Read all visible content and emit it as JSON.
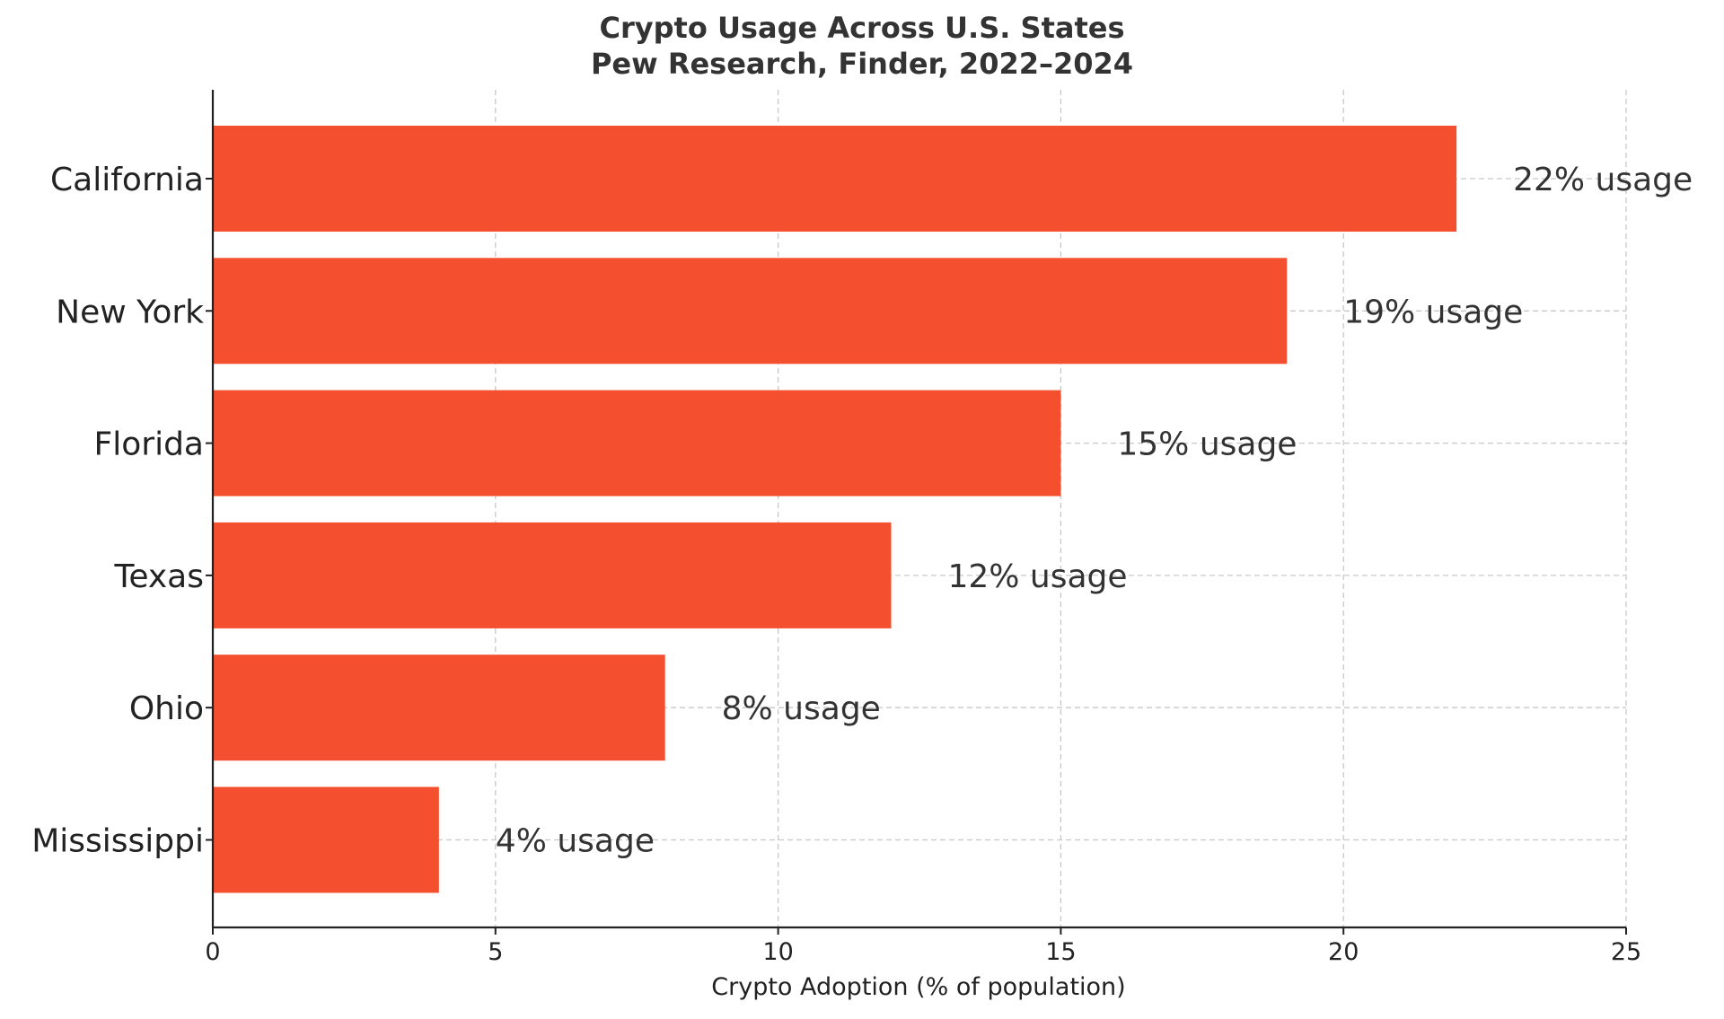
{
  "chart_data": {
    "type": "bar",
    "orientation": "horizontal",
    "title": "Crypto Usage Across U.S. States",
    "subtitle": "Pew Research, Finder, 2022–2024",
    "xlabel": "Crypto Adoption (% of population)",
    "ylabel": "",
    "categories": [
      "California",
      "New York",
      "Florida",
      "Texas",
      "Ohio",
      "Mississippi"
    ],
    "values": [
      22,
      19,
      15,
      12,
      8,
      4
    ],
    "data_labels": [
      "22% usage",
      "19% usage",
      "15% usage",
      "12% usage",
      "8% usage",
      "4% usage"
    ],
    "xlim": [
      0,
      25
    ],
    "xticks": [
      0,
      5,
      10,
      15,
      20,
      25
    ],
    "xtick_labels": [
      "0",
      "5",
      "10",
      "15",
      "20",
      "25"
    ],
    "grid": true,
    "legend": "none",
    "bar_color": "#F44F2E"
  }
}
